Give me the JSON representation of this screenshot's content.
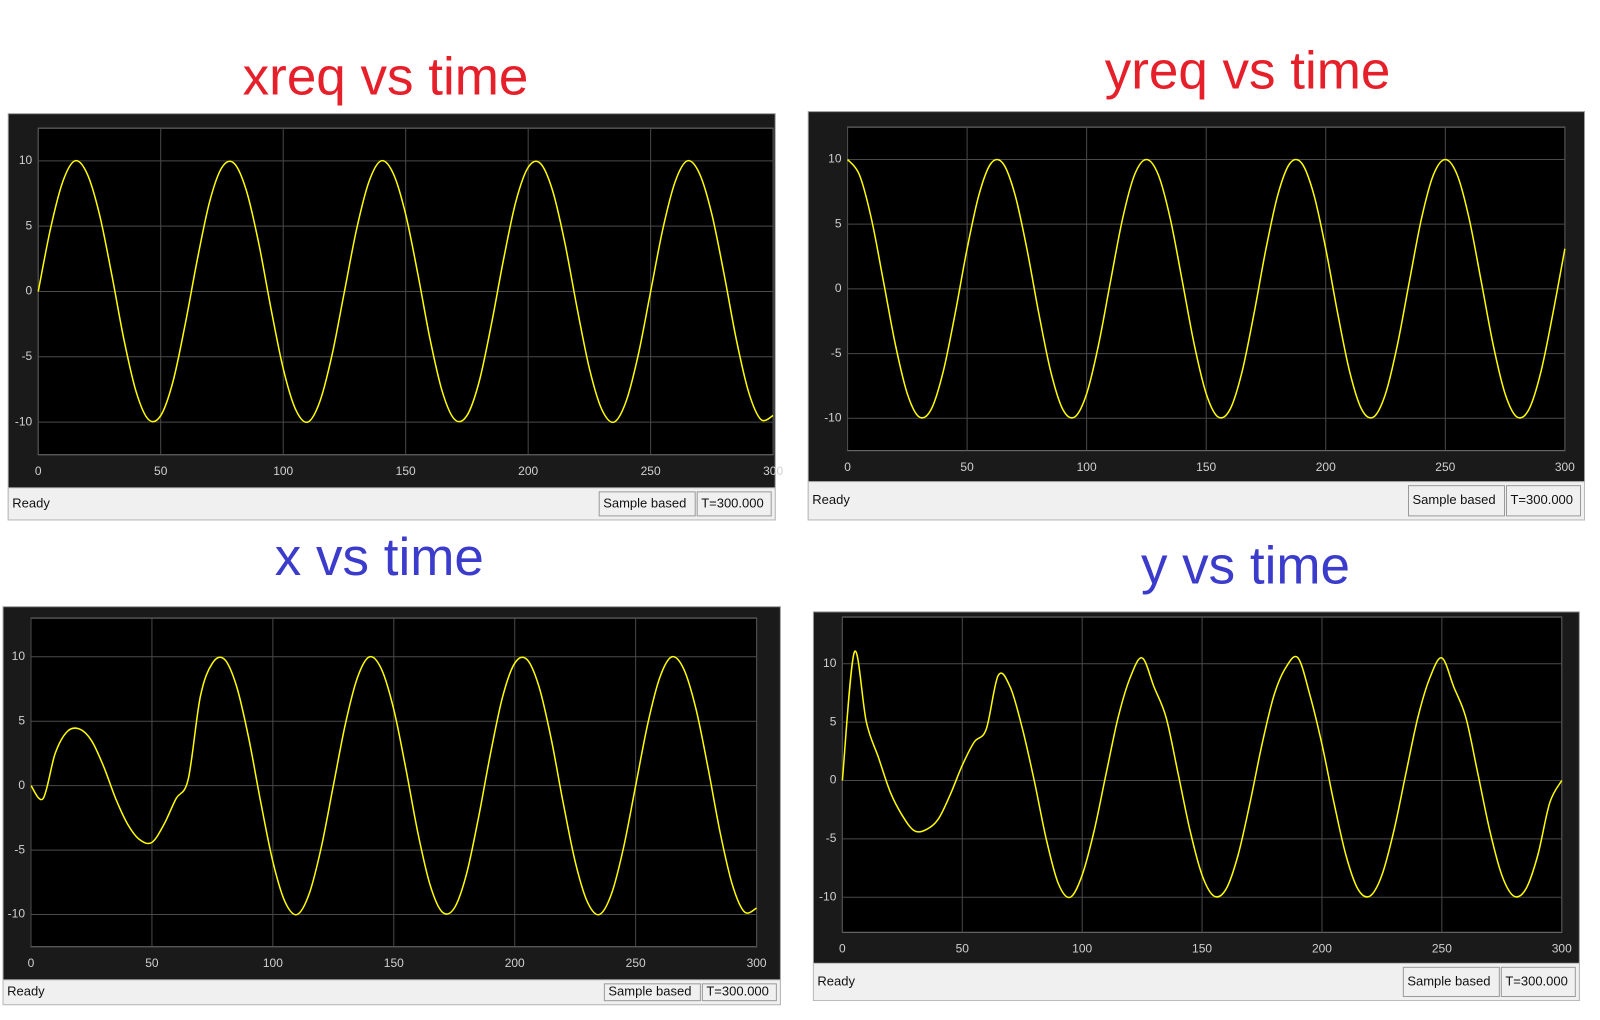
{
  "chart_data": [
    {
      "type": "line",
      "title": "xreq vs time",
      "title_color": "#e6202a",
      "color": "#ffff00",
      "x": [
        0,
        5,
        10,
        15,
        20,
        25,
        30,
        35,
        40,
        45,
        50,
        55,
        60,
        65,
        70,
        75,
        80,
        85,
        90,
        95,
        100,
        105,
        110,
        115,
        120,
        125,
        130,
        135,
        140,
        145,
        150,
        155,
        160,
        165,
        170,
        175,
        180,
        185,
        190,
        195,
        200,
        205,
        210,
        215,
        220,
        225,
        230,
        235,
        240,
        245,
        250,
        255,
        260,
        265,
        270,
        275,
        280,
        285,
        290,
        295,
        300
      ],
      "values": [
        0,
        4.8,
        8.4,
        10,
        9,
        5.9,
        1.3,
        -3.7,
        -7.7,
        -9.8,
        -9.5,
        -6.9,
        -2.5,
        2.5,
        6.9,
        9.5,
        9.8,
        7.7,
        3.7,
        -1.3,
        -5.9,
        -9,
        -10,
        -8.4,
        -4.8,
        0,
        4.8,
        8.4,
        10,
        9,
        5.9,
        1.3,
        -3.7,
        -7.7,
        -9.8,
        -9.5,
        -6.9,
        -2.5,
        2.5,
        6.9,
        9.5,
        9.8,
        7.7,
        3.7,
        -1.3,
        -5.9,
        -9,
        -10,
        -8.4,
        -4.8,
        0,
        4.8,
        8.4,
        10,
        9,
        5.9,
        1.3,
        -3.7,
        -7.7,
        -9.8,
        -9.5
      ],
      "xlim": [
        0,
        300
      ],
      "ylim": [
        -12.5,
        12.5
      ],
      "xticks": [
        0,
        50,
        100,
        150,
        200,
        250,
        300
      ],
      "yticks": [
        -10,
        -5,
        0,
        5,
        10
      ],
      "grid": true,
      "status": "Ready",
      "mode": "Sample based",
      "time": "T=300.000"
    },
    {
      "type": "line",
      "title": "yreq vs time",
      "title_color": "#e6202a",
      "color": "#ffff00",
      "x": [
        0,
        5,
        10,
        15,
        20,
        25,
        30,
        35,
        40,
        45,
        50,
        55,
        60,
        65,
        70,
        75,
        80,
        85,
        90,
        95,
        100,
        105,
        110,
        115,
        120,
        125,
        130,
        135,
        140,
        145,
        150,
        155,
        160,
        165,
        170,
        175,
        180,
        185,
        190,
        195,
        200,
        205,
        210,
        215,
        220,
        225,
        230,
        235,
        240,
        245,
        250,
        255,
        260,
        265,
        270,
        275,
        280,
        285,
        290,
        295,
        300
      ],
      "values": [
        10,
        8.8,
        5.4,
        0.6,
        -4.3,
        -8.1,
        -9.9,
        -9.3,
        -6.4,
        -1.9,
        3.1,
        7.3,
        9.7,
        9.7,
        7.3,
        3.1,
        -1.9,
        -6.4,
        -9.3,
        -9.9,
        -8.1,
        -4.3,
        0.6,
        5.4,
        8.8,
        10,
        8.8,
        5.4,
        0.6,
        -4.3,
        -8.1,
        -9.9,
        -9.3,
        -6.4,
        -1.9,
        3.1,
        7.3,
        9.7,
        9.7,
        7.3,
        3.1,
        -1.9,
        -6.4,
        -9.3,
        -9.9,
        -8.1,
        -4.3,
        0.6,
        5.4,
        8.8,
        10,
        8.8,
        5.4,
        0.6,
        -4.3,
        -8.1,
        -9.9,
        -9.3,
        -6.4,
        -1.9,
        3.1
      ],
      "xlim": [
        0,
        300
      ],
      "ylim": [
        -12.5,
        12.5
      ],
      "xticks": [
        0,
        50,
        100,
        150,
        200,
        250,
        300
      ],
      "yticks": [
        -10,
        -5,
        0,
        5,
        10
      ],
      "grid": true,
      "status": "Ready",
      "mode": "Sample based",
      "time": "T=300.000"
    },
    {
      "type": "line",
      "title": "x vs time",
      "title_color": "#3b3bcc",
      "color": "#ffff00",
      "x": [
        0,
        5,
        10,
        15,
        20,
        25,
        30,
        35,
        40,
        45,
        50,
        55,
        60,
        65,
        70,
        75,
        80,
        85,
        90,
        95,
        100,
        105,
        110,
        115,
        120,
        125,
        130,
        135,
        140,
        145,
        150,
        155,
        160,
        165,
        170,
        175,
        180,
        185,
        190,
        195,
        200,
        205,
        210,
        215,
        220,
        225,
        230,
        235,
        240,
        245,
        250,
        255,
        260,
        265,
        270,
        275,
        280,
        285,
        290,
        295,
        300
      ],
      "values": [
        0,
        -1,
        2.5,
        4.2,
        4.4,
        3.5,
        1.5,
        -1,
        -3,
        -4.2,
        -4.4,
        -3,
        -1,
        0.5,
        6.9,
        9.5,
        9.8,
        7.7,
        3.7,
        -1.3,
        -5.9,
        -9,
        -10,
        -8.4,
        -4.8,
        0,
        4.8,
        8.4,
        10,
        9,
        5.9,
        1.3,
        -3.7,
        -7.7,
        -9.8,
        -9.5,
        -6.9,
        -2.5,
        2.5,
        6.9,
        9.5,
        9.8,
        7.7,
        3.7,
        -1.3,
        -5.9,
        -9,
        -10,
        -8.4,
        -4.8,
        0,
        4.8,
        8.4,
        10,
        9,
        5.9,
        1.3,
        -3.7,
        -7.7,
        -9.8,
        -9.5
      ],
      "xlim": [
        0,
        300
      ],
      "ylim": [
        -12.5,
        13
      ],
      "xticks": [
        0,
        50,
        100,
        150,
        200,
        250,
        300
      ],
      "yticks": [
        -10,
        -5,
        0,
        5,
        10
      ],
      "grid": true,
      "status": "Ready",
      "mode": "Sample based",
      "time": "T=300.000"
    },
    {
      "type": "line",
      "title": "y vs time",
      "title_color": "#3b3bcc",
      "color": "#ffff00",
      "x": [
        0,
        5,
        10,
        15,
        20,
        25,
        30,
        35,
        40,
        45,
        50,
        55,
        60,
        65,
        70,
        75,
        80,
        85,
        90,
        95,
        100,
        105,
        110,
        115,
        120,
        125,
        130,
        135,
        140,
        145,
        150,
        155,
        160,
        165,
        170,
        175,
        180,
        185,
        190,
        195,
        200,
        205,
        210,
        215,
        220,
        225,
        230,
        235,
        240,
        245,
        250,
        255,
        260,
        265,
        270,
        275,
        280,
        285,
        290,
        295,
        300
      ],
      "values": [
        0,
        11,
        5,
        2,
        -1,
        -3,
        -4.3,
        -4.2,
        -3.3,
        -1.2,
        1.3,
        3.3,
        4.4,
        9,
        8,
        4.5,
        0,
        -5,
        -8.8,
        -10,
        -8.1,
        -4.3,
        0.6,
        5.4,
        8.8,
        10.5,
        8,
        5.4,
        0.6,
        -4.3,
        -8.1,
        -9.9,
        -9.3,
        -6.4,
        -1.9,
        3.1,
        7.3,
        9.7,
        10.5,
        7.3,
        3.1,
        -1.9,
        -6.4,
        -9.3,
        -9.9,
        -8.1,
        -4.3,
        0.6,
        5.4,
        8.8,
        10.5,
        8,
        5.4,
        0.6,
        -4.3,
        -8.1,
        -9.9,
        -9.3,
        -6.4,
        -1.9,
        0
      ],
      "xlim": [
        0,
        300
      ],
      "ylim": [
        -13,
        14
      ],
      "xticks": [
        0,
        50,
        100,
        150,
        200,
        250,
        300
      ],
      "yticks": [
        -10,
        -5,
        0,
        5,
        10
      ],
      "grid": true,
      "status": "Ready",
      "mode": "Sample based",
      "time": "T=300.000"
    }
  ]
}
